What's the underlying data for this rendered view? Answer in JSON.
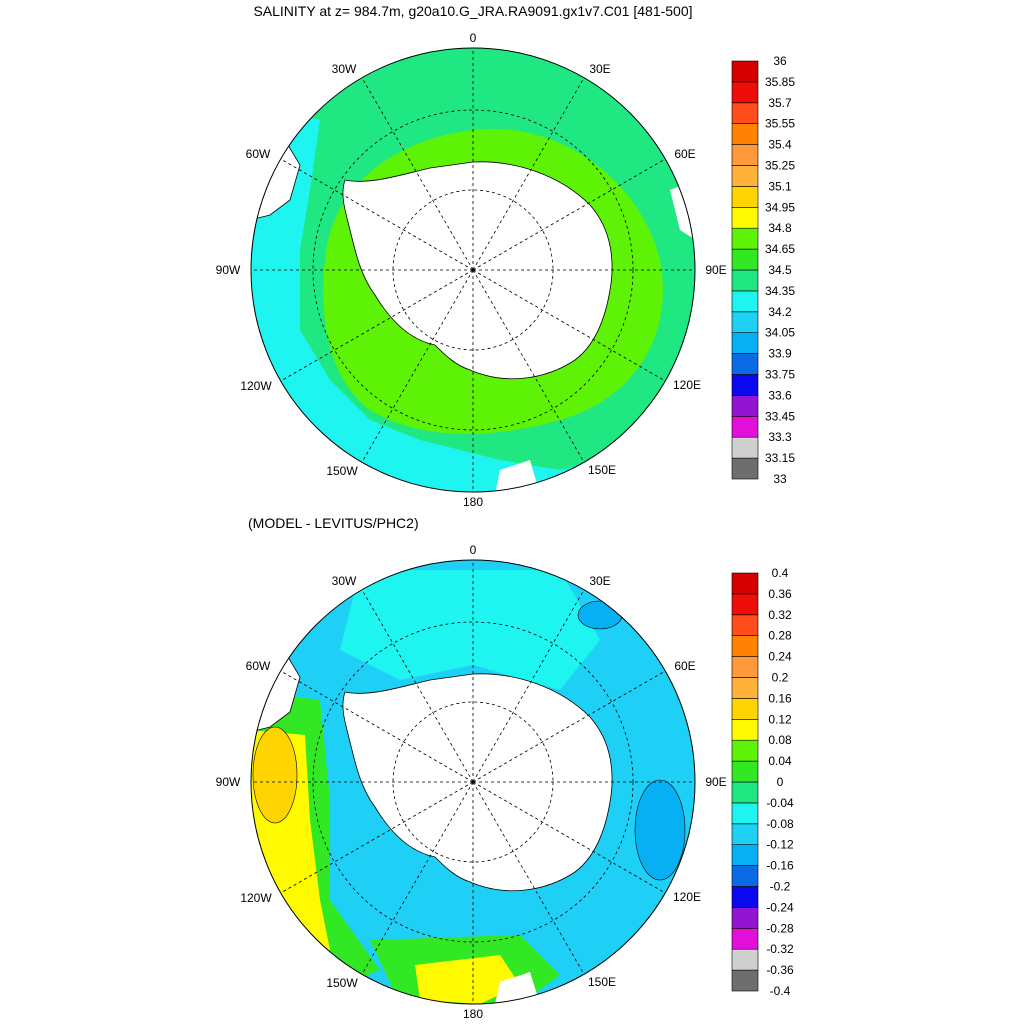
{
  "chart_data": [
    {
      "type": "heatmap",
      "title": "SALINITY at z= 984.7m, g20a10.G_JRA.RA9091.gx1v7.C01 [481-500]",
      "projection": "south-polar-stereographic",
      "longitude_labels": [
        "0",
        "30E",
        "60E",
        "90E",
        "120E",
        "150E",
        "180",
        "150W",
        "120W",
        "90W",
        "60W",
        "30W"
      ],
      "colorbar": {
        "labels": [
          "33",
          "33.15",
          "33.3",
          "33.45",
          "33.6",
          "33.75",
          "33.9",
          "34.05",
          "34.2",
          "34.35",
          "34.5",
          "34.65",
          "34.8",
          "34.95",
          "35.1",
          "35.25",
          "35.4",
          "35.55",
          "35.7",
          "35.85",
          "36"
        ],
        "colors": [
          "#6e6e6e",
          "#cfcfcf",
          "#e30ed9",
          "#9415d1",
          "#0a09f0",
          "#0a6be8",
          "#06b0f2",
          "#1ed0f5",
          "#1ef5f0",
          "#1fe883",
          "#32e825",
          "#5ef206",
          "#fffa00",
          "#ffd400",
          "#ffb13a",
          "#ff9a3a",
          "#ff8205",
          "#ff4d1c",
          "#ef0d07",
          "#d60000"
        ]
      },
      "approx_fields": {
        "antarctica_land": "white",
        "inner_ring": "34.65–34.8",
        "outer_ring": "34.5–34.65"
      }
    },
    {
      "type": "heatmap",
      "title": "(MODEL - LEVITUS/PHC2)",
      "projection": "south-polar-stereographic",
      "longitude_labels": [
        "0",
        "30E",
        "60E",
        "90E",
        "120E",
        "150E",
        "180",
        "150W",
        "120W",
        "90W",
        "60W",
        "30W"
      ],
      "colorbar": {
        "labels": [
          "-0.4",
          "-0.36",
          "-0.32",
          "-0.28",
          "-0.24",
          "-0.2",
          "-0.16",
          "-0.12",
          "-0.08",
          "-0.04",
          "0",
          "0.04",
          "0.08",
          "0.12",
          "0.16",
          "0.2",
          "0.24",
          "0.28",
          "0.32",
          "0.36",
          "0.4"
        ],
        "colors": [
          "#6e6e6e",
          "#cfcfcf",
          "#e30ed9",
          "#9415d1",
          "#0a09f0",
          "#0a6be8",
          "#06b0f2",
          "#1ed0f5",
          "#1ef5f0",
          "#1fe883",
          "#32e825",
          "#5ef206",
          "#fffa00",
          "#ffd400",
          "#ffb13a",
          "#ff9a3a",
          "#ff8205",
          "#ff4d1c",
          "#ef0d07",
          "#d60000"
        ]
      },
      "approx_fields": {
        "antarctica_land": "white",
        "dominant": "-0.08 to -0.04",
        "warm_anomaly_pacific": "0.08–0.16"
      }
    }
  ]
}
